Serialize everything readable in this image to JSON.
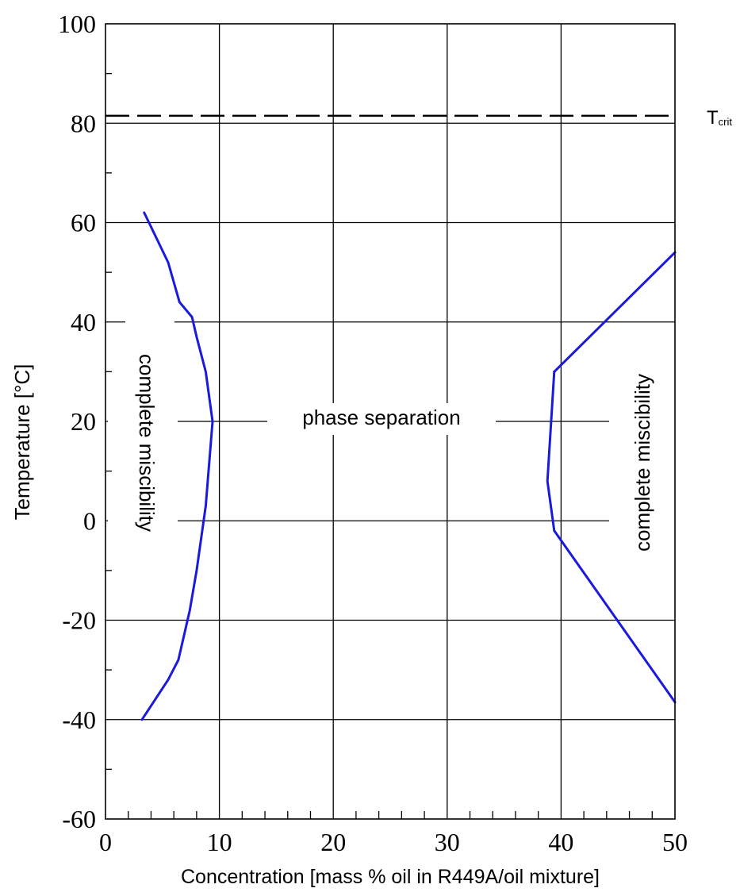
{
  "chart_data": {
    "type": "line",
    "title": "",
    "xlabel": "Concentration [mass % oil in R449A/oil mixture]",
    "ylabel": "Temperature [°C]",
    "xlim": [
      0,
      50
    ],
    "ylim": [
      -60,
      100
    ],
    "x_major_ticks": [
      0,
      10,
      20,
      30,
      40,
      50
    ],
    "y_major_ticks": [
      -60,
      -40,
      -20,
      0,
      20,
      40,
      60,
      80,
      100
    ],
    "x_tick_labels": [
      "0",
      "10",
      "20",
      "30",
      "40",
      "50"
    ],
    "y_tick_labels": [
      "-60",
      "-40",
      "-20",
      "0",
      "20",
      "40",
      "60",
      "80",
      "100"
    ],
    "grid": true,
    "critical_temperature": {
      "label_main": "T",
      "label_sub": "crit",
      "value": 81.5,
      "style": "dashed"
    },
    "series": [
      {
        "color": "#1a1adc",
        "points": [
          [
            3.4,
            62
          ],
          [
            5.5,
            52
          ],
          [
            6.5,
            44
          ],
          [
            7.6,
            41
          ],
          [
            8.0,
            37
          ],
          [
            8.8,
            30
          ],
          [
            9.4,
            20
          ],
          [
            8.8,
            3
          ],
          [
            8.0,
            -10
          ],
          [
            7.4,
            -18
          ],
          [
            6.4,
            -28
          ],
          [
            5.5,
            -32
          ],
          [
            3.2,
            -40
          ]
        ]
      },
      {
        "color": "#1a1adc",
        "points": [
          [
            39.4,
            30
          ],
          [
            38.8,
            8
          ],
          [
            39.4,
            -2
          ],
          [
            50,
            -36.5
          ]
        ]
      },
      {
        "color": "#1a1adc",
        "points": [
          [
            39.4,
            30
          ],
          [
            50,
            54
          ]
        ]
      }
    ],
    "annotations": {
      "phase_separation": "phase separation",
      "complete_miscibility_left": "complete miscibility",
      "complete_miscibility_right": "complete miscibility"
    }
  }
}
